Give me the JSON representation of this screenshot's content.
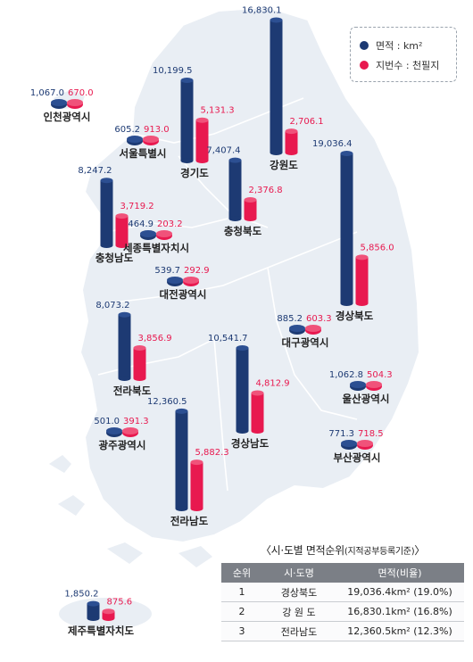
{
  "legend": {
    "area_label": "면적 : km²",
    "lots_label": "지번수 : 천필지",
    "area_color": "#1d3a73",
    "lots_color": "#e8194f"
  },
  "chart_data": {
    "type": "bar",
    "series": [
      {
        "name": "면적 : km²",
        "color": "#1d3a73"
      },
      {
        "name": "지번수 : 천필지",
        "color": "#e8194f"
      }
    ],
    "regions": [
      {
        "name": "인천광역시",
        "area": 1067.0,
        "area_label": "1,067.0",
        "lots": 670.0,
        "lots_label": "670.0"
      },
      {
        "name": "서울특별시",
        "area": 605.2,
        "area_label": "605.2",
        "lots": 913.0,
        "lots_label": "913.0"
      },
      {
        "name": "경기도",
        "area": 10199.5,
        "area_label": "10,199.5",
        "lots": 5131.3,
        "lots_label": "5,131.3"
      },
      {
        "name": "강원도",
        "area": 16830.1,
        "area_label": "16,830.1",
        "lots": 2706.1,
        "lots_label": "2,706.1"
      },
      {
        "name": "충청북도",
        "area": 7407.4,
        "area_label": "7,407.4",
        "lots": 2376.8,
        "lots_label": "2,376.8"
      },
      {
        "name": "경상북도",
        "area": 19036.4,
        "area_label": "19,036.4",
        "lots": 5856.0,
        "lots_label": "5,856.0"
      },
      {
        "name": "충청남도",
        "area": 8247.2,
        "area_label": "8,247.2",
        "lots": 3719.2,
        "lots_label": "3,719.2"
      },
      {
        "name": "세종특별자치시",
        "area": 464.9,
        "area_label": "464.9",
        "lots": 203.2,
        "lots_label": "203.2"
      },
      {
        "name": "대전광역시",
        "area": 539.7,
        "area_label": "539.7",
        "lots": 292.9,
        "lots_label": "292.9"
      },
      {
        "name": "전라북도",
        "area": 8073.2,
        "area_label": "8,073.2",
        "lots": 3856.9,
        "lots_label": "3,856.9"
      },
      {
        "name": "대구광역시",
        "area": 885.2,
        "area_label": "885.2",
        "lots": 603.3,
        "lots_label": "603.3"
      },
      {
        "name": "경상남도",
        "area": 10541.7,
        "area_label": "10,541.7",
        "lots": 4812.9,
        "lots_label": "4,812.9"
      },
      {
        "name": "울산광역시",
        "area": 1062.8,
        "area_label": "1,062.8",
        "lots": 504.3,
        "lots_label": "504.3"
      },
      {
        "name": "광주광역시",
        "area": 501.0,
        "area_label": "501.0",
        "lots": 391.3,
        "lots_label": "391.3"
      },
      {
        "name": "전라남도",
        "area": 12360.5,
        "area_label": "12,360.5",
        "lots": 5882.3,
        "lots_label": "5,882.3"
      },
      {
        "name": "부산광역시",
        "area": 771.3,
        "area_label": "771.3",
        "lots": 718.5,
        "lots_label": "718.5"
      },
      {
        "name": "제주특별자치도",
        "area": 1850.2,
        "area_label": "1,850.2",
        "lots": 875.6,
        "lots_label": "875.6"
      }
    ]
  },
  "ranking": {
    "title": "〈시·도별 면적순위",
    "title_note": "(지적공부등록기준)",
    "title_end": "〉",
    "headers": [
      "순위",
      "시·도명",
      "면적(비율)"
    ],
    "rows": [
      [
        "1",
        "경상북도",
        "19,036.4km² (19.0%)"
      ],
      [
        "2",
        "강 원 도",
        "16,830.1km² (16.8%)"
      ],
      [
        "3",
        "전라남도",
        "12,360.5km² (12.3%)"
      ]
    ]
  }
}
